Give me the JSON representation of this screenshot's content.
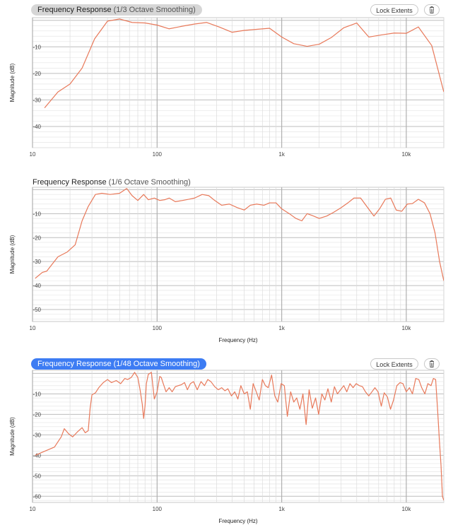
{
  "charts": [
    {
      "title_main": "Frequency Response",
      "title_sub": " (1/3 Octave Smoothing)",
      "title_style": "gray",
      "buttons": {
        "lock_label": "Lock Extents",
        "trash_icon": "trash-icon"
      },
      "ylabel": "Magnitude (dB)",
      "xlabel": "",
      "yticks": [
        "-10",
        "-20",
        "-30",
        "-40"
      ],
      "xticks": [
        "10",
        "100",
        "1k",
        "10k"
      ]
    },
    {
      "title_main": "Frequency Response",
      "title_sub": " (1/6 Octave Smoothing)",
      "title_style": "plain",
      "buttons": null,
      "ylabel": "Magnitude (dB)",
      "xlabel": "Frequency (Hz)",
      "yticks": [
        "-10",
        "-20",
        "-30",
        "-40",
        "-50"
      ],
      "xticks": [
        "10",
        "100",
        "1k",
        "10k"
      ]
    },
    {
      "title_main": "Frequency Response",
      "title_sub": " (1/48 Octave Smoothing)",
      "title_style": "blue",
      "buttons": {
        "lock_label": "Lock Extents",
        "trash_icon": "trash-icon"
      },
      "ylabel": "Magnitude (dB)",
      "xlabel": "Frequency (Hz)",
      "yticks": [
        "-10",
        "-20",
        "-30",
        "-40",
        "-50",
        "-60"
      ],
      "xticks": [
        "10",
        "100",
        "1k",
        "10k"
      ]
    }
  ],
  "chart_data": [
    {
      "type": "line",
      "title": "Frequency Response (1/3 Octave Smoothing)",
      "xlabel": "",
      "ylabel": "Magnitude (dB)",
      "xscale": "log",
      "xlim": [
        10,
        20000
      ],
      "ylim": [
        -48,
        1
      ],
      "grid": true,
      "line_color": "#e8795a",
      "series": [
        {
          "x": [
            12.5,
            16,
            20,
            25,
            31.5,
            40,
            50,
            63,
            80,
            100,
            125,
            160,
            200,
            250,
            315,
            400,
            500,
            630,
            800,
            1000,
            1250,
            1600,
            2000,
            2500,
            3150,
            4000,
            5000,
            6300,
            8000,
            10000,
            12500,
            16000,
            20000
          ],
          "y": [
            -33,
            -27,
            -24,
            -18,
            -7,
            -0.3,
            0.5,
            -0.8,
            -1,
            -1.8,
            -3.2,
            -2.2,
            -1.4,
            -0.8,
            -2.5,
            -4.5,
            -3.8,
            -3.4,
            -3,
            -6.3,
            -8.8,
            -9.8,
            -9,
            -6.5,
            -2.8,
            -1,
            -6.3,
            -5.5,
            -4.8,
            -4.9,
            -2.5,
            -9.5,
            -27
          ]
        }
      ]
    },
    {
      "type": "line",
      "title": "Frequency Response (1/6 Octave Smoothing)",
      "xlabel": "Frequency (Hz)",
      "ylabel": "Magnitude (dB)",
      "xscale": "log",
      "xlim": [
        10,
        20000
      ],
      "ylim": [
        -55,
        1
      ],
      "grid": true,
      "line_color": "#e8795a",
      "series": [
        {
          "x": [
            10.5,
            12,
            13,
            16,
            19,
            22,
            25,
            28,
            32,
            36,
            42,
            50,
            57,
            63,
            70,
            78,
            85,
            95,
            105,
            115,
            125,
            140,
            160,
            180,
            200,
            230,
            260,
            290,
            330,
            380,
            440,
            500,
            560,
            630,
            720,
            800,
            900,
            1000,
            1150,
            1300,
            1450,
            1600,
            1800,
            2000,
            2300,
            2600,
            3000,
            3400,
            3800,
            4300,
            4900,
            5500,
            6100,
            6800,
            7500,
            8300,
            9200,
            10200,
            11200,
            12500,
            14000,
            15500,
            17000,
            18500,
            20000
          ],
          "y": [
            -37,
            -34.5,
            -34,
            -28,
            -26,
            -23,
            -13,
            -7,
            -2,
            -1.5,
            -2,
            -1.5,
            0.5,
            -2.5,
            -4.5,
            -2,
            -4.2,
            -3.5,
            -4.5,
            -4.2,
            -3.5,
            -5,
            -4.5,
            -4,
            -3.5,
            -2,
            -2.5,
            -4.5,
            -6.5,
            -6,
            -7.5,
            -8.5,
            -6.5,
            -6,
            -6.5,
            -5.5,
            -5.5,
            -8,
            -10,
            -12,
            -13,
            -10,
            -11,
            -12,
            -11,
            -9.5,
            -7.5,
            -5.5,
            -3.5,
            -3.5,
            -7.5,
            -11,
            -8,
            -4,
            -3.5,
            -8.5,
            -9,
            -6,
            -5.8,
            -4,
            -5.5,
            -10,
            -18,
            -30,
            -38
          ]
        }
      ]
    },
    {
      "type": "line",
      "title": "Frequency Response (1/48 Octave Smoothing)",
      "xlabel": "Frequency (Hz)",
      "ylabel": "Magnitude (dB)",
      "xscale": "log",
      "xlim": [
        10,
        20000
      ],
      "ylim": [
        -63,
        1.5
      ],
      "grid": true,
      "line_color": "#e8795a",
      "series": [
        {
          "x": [
            10.5,
            12.5,
            15,
            17,
            18,
            19.5,
            21,
            23,
            25,
            26.5,
            28,
            29,
            30,
            32,
            34,
            37,
            40,
            43,
            47,
            51,
            55,
            58,
            62,
            66,
            70,
            73,
            76,
            78,
            80,
            82,
            85,
            90,
            95,
            100,
            105,
            108,
            112,
            118,
            125,
            132,
            140,
            148,
            157,
            166,
            175,
            185,
            196,
            210,
            225,
            240,
            255,
            270,
            290,
            310,
            330,
            350,
            370,
            395,
            420,
            445,
            470,
            500,
            530,
            560,
            590,
            625,
            660,
            700,
            740,
            780,
            830,
            880,
            930,
            990,
            1050,
            1110,
            1180,
            1250,
            1320,
            1400,
            1480,
            1570,
            1660,
            1760,
            1870,
            1980,
            2100,
            2220,
            2350,
            2500,
            2650,
            2800,
            2970,
            3150,
            3330,
            3530,
            3740,
            3960,
            4200,
            4450,
            4700,
            5000,
            5300,
            5600,
            5930,
            6300,
            6650,
            7050,
            7470,
            7900,
            8400,
            8900,
            9400,
            10000,
            10600,
            11200,
            11900,
            12600,
            13300,
            14100,
            14900,
            15800,
            16500,
            17200,
            17800,
            18400,
            19000,
            19500,
            20000
          ],
          "y": [
            -40,
            -38,
            -36,
            -31,
            -27,
            -29.5,
            -31,
            -28.5,
            -26.5,
            -29,
            -28,
            -17,
            -10.5,
            -9.5,
            -7,
            -4.5,
            -3,
            -4.5,
            -3.5,
            -5,
            -2.5,
            -3,
            -2,
            0.5,
            -2,
            -8,
            -15,
            -22,
            -16,
            -5,
            -0.5,
            0.5,
            -12.5,
            -9,
            -1.5,
            -2,
            -5,
            -9,
            -7,
            -9,
            -6.5,
            -6,
            -5.5,
            -4.5,
            -8,
            -5,
            -4,
            -8,
            -4,
            -6,
            -3,
            -4,
            -6.5,
            -8,
            -7,
            -8.5,
            -7.5,
            -11,
            -9,
            -12.5,
            -6,
            -10,
            -9,
            -17.5,
            -5,
            -9,
            -13,
            -3,
            -6,
            -7,
            -0.8,
            -11,
            -14,
            -5,
            -6,
            -21,
            -9,
            -14,
            -12,
            -17.5,
            -10,
            -25,
            -8,
            -17,
            -12,
            -20,
            -10,
            -13,
            -7.5,
            -14,
            -6.5,
            -10,
            -8,
            -6,
            -9,
            -5,
            -7,
            -5,
            -6,
            -6.5,
            -9,
            -11,
            -9,
            -7,
            -9,
            -16,
            -9.5,
            -11.5,
            -17.5,
            -13,
            -6,
            -4.5,
            -5,
            -9,
            -7,
            -10,
            -2.5,
            -3,
            -7,
            -10,
            -5,
            -6,
            -2.5,
            -3,
            -17,
            -32,
            -45,
            -60,
            -62
          ]
        }
      ]
    }
  ]
}
